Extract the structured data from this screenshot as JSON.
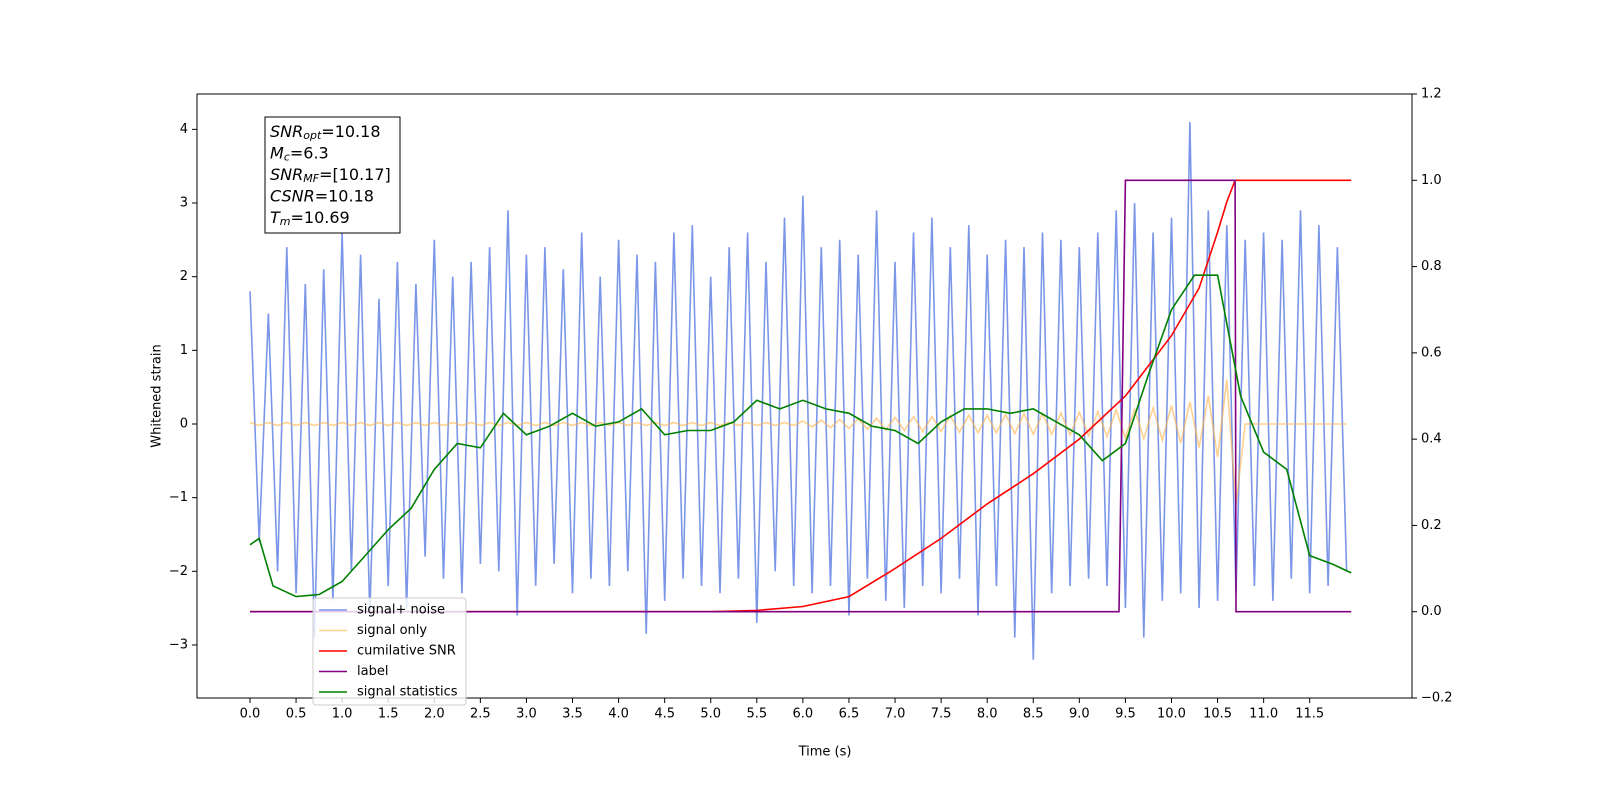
{
  "chart_data": {
    "type": "line",
    "xlabel": "Time (s)",
    "ylabel": "Whitened strain",
    "xlim": [
      -0.575,
      12.61
    ],
    "ylim": [
      -3.72,
      4.48
    ],
    "y2lim": [
      -0.2,
      1.2
    ],
    "xticks": [
      {
        "value": 0,
        "label": "0.0"
      },
      0.5,
      {
        "value": 1,
        "label": "1.0"
      },
      1.5,
      {
        "value": 2,
        "label": "2.0"
      },
      2.5,
      {
        "value": 3,
        "label": "3.0"
      },
      3.5,
      {
        "value": 4,
        "label": "4.0"
      },
      4.5,
      {
        "value": 5,
        "label": "5.0"
      },
      5.5,
      {
        "value": 6,
        "label": "6.0"
      },
      6.5,
      {
        "value": 7,
        "label": "7.0"
      },
      7.5,
      {
        "value": 8,
        "label": "8.0"
      },
      8.5,
      {
        "value": 9,
        "label": "9.0"
      },
      9.5,
      {
        "value": 10,
        "label": "10.0"
      },
      10.5,
      {
        "value": 11,
        "label": "11.0"
      },
      11.5
    ],
    "yticks": [
      {
        "value": -3,
        "label": "−3"
      },
      {
        "value": -2,
        "label": "−2"
      },
      {
        "value": -1,
        "label": "−1"
      },
      0,
      1,
      2,
      3,
      4
    ],
    "y2ticks": [
      {
        "value": -0.2,
        "label": "−0.2"
      },
      {
        "value": 0,
        "label": "0.0"
      },
      0.2,
      0.4,
      0.6,
      0.8,
      {
        "value": 1,
        "label": "1.0"
      },
      1.2
    ],
    "legend": "lower left",
    "annotations": [
      {
        "symbol": "SNR",
        "subscript": "opt",
        "text": "=10.18"
      },
      {
        "symbol": "M",
        "subscript": "c",
        "text": "=6.3"
      },
      {
        "symbol": "SNR",
        "subscript": "MF",
        "text": "=[10.17]"
      },
      {
        "symbol": "CSNR",
        "subscript": "",
        "text": "=10.18"
      },
      {
        "symbol": "T",
        "subscript": "m",
        "text": "=10.69"
      }
    ],
    "x": [
      0,
      0.1,
      0.2,
      0.3,
      0.4,
      0.5,
      0.6,
      0.7,
      0.8,
      0.9,
      1,
      1.1,
      1.2,
      1.3,
      1.4,
      1.5,
      1.6,
      1.7,
      1.8,
      1.9,
      2,
      2.1,
      2.2,
      2.3,
      2.4,
      2.5,
      2.6,
      2.7,
      2.8,
      2.9,
      3,
      3.1,
      3.2,
      3.3,
      3.4,
      3.5,
      3.6,
      3.7,
      3.8,
      3.9,
      4,
      4.1,
      4.2,
      4.3,
      4.4,
      4.5,
      4.6,
      4.7,
      4.8,
      4.9,
      5,
      5.1,
      5.2,
      5.3,
      5.4,
      5.5,
      5.6,
      5.7,
      5.8,
      5.9,
      6,
      6.1,
      6.2,
      6.3,
      6.4,
      6.5,
      6.6,
      6.7,
      6.8,
      6.9,
      7,
      7.1,
      7.2,
      7.3,
      7.4,
      7.5,
      7.6,
      7.7,
      7.8,
      7.9,
      8,
      8.1,
      8.2,
      8.3,
      8.4,
      8.5,
      8.6,
      8.7,
      8.8,
      8.9,
      9,
      9.1,
      9.2,
      9.3,
      9.4,
      9.5,
      9.6,
      9.7,
      9.8,
      9.9,
      10,
      10.1,
      10.2,
      10.3,
      10.4,
      10.5,
      10.6,
      10.7,
      10.8,
      10.9,
      11,
      11.1,
      11.2,
      11.3,
      11.4,
      11.5,
      11.6,
      11.7,
      11.8,
      11.9
    ],
    "series": [
      {
        "name": "signal+ noise",
        "color": "#7b96e8",
        "values": [
          1.8,
          -1.6,
          1.5,
          -2.0,
          2.4,
          -2.3,
          1.9,
          -2.9,
          2.1,
          -2.4,
          2.6,
          -2.0,
          2.3,
          -2.6,
          1.7,
          -2.2,
          2.2,
          -2.5,
          1.9,
          -1.8,
          2.5,
          -2.1,
          2.0,
          -2.3,
          2.2,
          -1.9,
          2.4,
          -2.0,
          2.9,
          -2.6,
          2.3,
          -2.2,
          2.4,
          -1.9,
          2.1,
          -2.3,
          2.6,
          -2.1,
          2.0,
          -2.2,
          2.5,
          -2.0,
          2.3,
          -2.85,
          2.2,
          -2.4,
          2.6,
          -2.1,
          2.7,
          -2.2,
          2.0,
          -2.3,
          2.4,
          -2.1,
          2.6,
          -2.7,
          2.2,
          -2.0,
          2.8,
          -2.2,
          3.1,
          -2.3,
          2.4,
          -2.2,
          2.5,
          -2.6,
          2.3,
          -2.1,
          2.9,
          -2.4,
          2.2,
          -2.5,
          2.6,
          -2.2,
          2.8,
          -2.3,
          2.4,
          -2.1,
          2.7,
          -2.6,
          2.3,
          -2.2,
          2.5,
          -2.9,
          2.4,
          -3.2,
          2.6,
          -2.3,
          2.5,
          -2.2,
          2.4,
          -2.1,
          2.6,
          -2.2,
          2.9,
          -2.5,
          3.0,
          -2.9,
          2.6,
          -2.4,
          2.8,
          -2.3,
          4.1,
          -2.5,
          2.9,
          -2.4,
          2.7,
          -2.3,
          2.5,
          -2.2,
          2.6,
          -2.4,
          2.5,
          -2.1,
          2.9,
          -2.3,
          2.7,
          -2.2,
          2.4,
          -2.0
        ]
      },
      {
        "name": "signal only",
        "color": "#ffb347",
        "values": [
          0.02,
          -0.02,
          0.02,
          -0.02,
          0.02,
          -0.02,
          0.02,
          -0.02,
          0.02,
          -0.02,
          0.02,
          -0.02,
          0.02,
          -0.02,
          0.02,
          -0.02,
          0.02,
          -0.02,
          0.02,
          -0.02,
          0.02,
          -0.02,
          0.02,
          -0.02,
          0.02,
          -0.02,
          0.02,
          -0.02,
          0.02,
          -0.02,
          0.02,
          -0.02,
          0.02,
          -0.02,
          0.02,
          -0.02,
          0.02,
          -0.02,
          0.02,
          -0.02,
          0.02,
          -0.02,
          0.02,
          -0.02,
          0.02,
          -0.02,
          0.02,
          -0.02,
          0.02,
          -0.02,
          0.02,
          -0.02,
          0.02,
          -0.02,
          0.02,
          -0.02,
          0.02,
          -0.02,
          0.02,
          -0.02,
          0.04,
          -0.04,
          0.05,
          -0.05,
          0.06,
          -0.06,
          0.07,
          -0.07,
          0.08,
          -0.08,
          0.09,
          -0.09,
          0.1,
          -0.1,
          0.1,
          -0.1,
          0.11,
          -0.11,
          0.12,
          -0.12,
          0.12,
          -0.12,
          0.13,
          -0.13,
          0.14,
          -0.14,
          0.14,
          -0.14,
          0.15,
          -0.15,
          0.16,
          -0.16,
          0.17,
          -0.17,
          0.19,
          -0.19,
          0.2,
          -0.2,
          0.22,
          -0.22,
          0.25,
          -0.26,
          0.3,
          -0.32,
          0.38,
          -0.45,
          0.6,
          -1.1,
          0,
          0,
          0,
          0,
          0,
          0,
          0,
          0,
          0,
          0,
          0,
          0
        ]
      },
      {
        "name": "cumilative SNR",
        "color": "#ff0000",
        "axis": "y2",
        "x": [
          0,
          5.0,
          5.5,
          6.0,
          6.5,
          7.0,
          7.5,
          8.0,
          8.5,
          9.0,
          9.5,
          10.0,
          10.3,
          10.5,
          10.6,
          10.69,
          10.7,
          11.95
        ],
        "values": [
          0,
          0,
          0.003,
          0.012,
          0.035,
          0.1,
          0.17,
          0.25,
          0.32,
          0.4,
          0.5,
          0.64,
          0.75,
          0.88,
          0.95,
          1.0,
          1.0,
          1.0
        ]
      },
      {
        "name": "label",
        "color": "#800080",
        "axis": "y2",
        "x": [
          0,
          9.43,
          9.5,
          10.69,
          10.7,
          11.95
        ],
        "values": [
          0,
          0,
          1,
          1,
          0,
          0
        ]
      },
      {
        "name": "signal statistics",
        "color": "#008000",
        "axis": "y2",
        "x": [
          0,
          0.1,
          0.25,
          0.5,
          0.75,
          1.0,
          1.25,
          1.5,
          1.75,
          2.0,
          2.25,
          2.5,
          2.75,
          3.0,
          3.25,
          3.5,
          3.75,
          4.0,
          4.25,
          4.5,
          4.75,
          5.0,
          5.25,
          5.5,
          5.75,
          6.0,
          6.25,
          6.5,
          6.75,
          7.0,
          7.25,
          7.5,
          7.75,
          8.0,
          8.25,
          8.5,
          8.75,
          9.0,
          9.25,
          9.5,
          9.75,
          10.0,
          10.25,
          10.5,
          10.75,
          11.0,
          11.25,
          11.5,
          11.75,
          11.95
        ],
        "values": [
          0.155,
          0.17,
          0.06,
          0.035,
          0.04,
          0.07,
          0.13,
          0.19,
          0.24,
          0.33,
          0.39,
          0.38,
          0.46,
          0.41,
          0.43,
          0.46,
          0.43,
          0.44,
          0.47,
          0.41,
          0.42,
          0.42,
          0.44,
          0.49,
          0.47,
          0.49,
          0.47,
          0.46,
          0.43,
          0.42,
          0.39,
          0.44,
          0.47,
          0.47,
          0.46,
          0.47,
          0.44,
          0.41,
          0.35,
          0.39,
          0.55,
          0.7,
          0.78,
          0.78,
          0.5,
          0.37,
          0.33,
          0.13,
          0.11,
          0.09
        ]
      }
    ]
  }
}
